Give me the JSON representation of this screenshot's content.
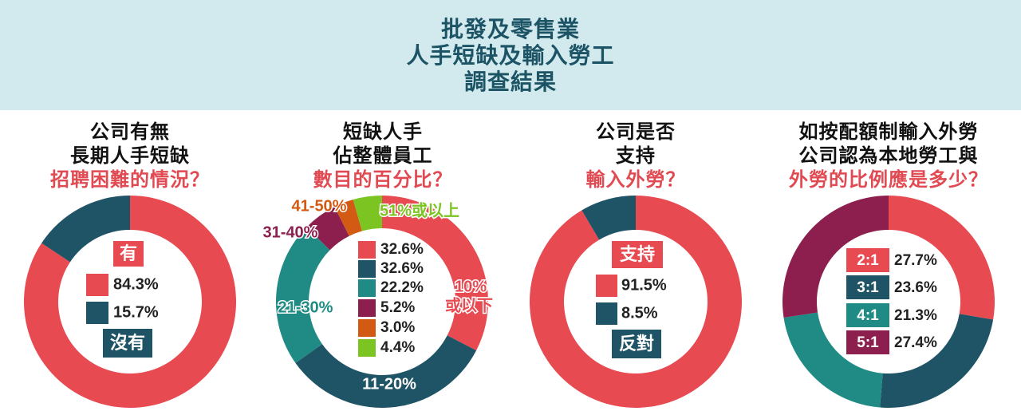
{
  "header": {
    "lines": [
      "批發及零售業",
      "人手短缺及輸入勞工",
      "調查結果"
    ]
  },
  "colors": {
    "red": "#e84a52",
    "navy": "#1f5466",
    "teal": "#1f8b84",
    "plum": "#8d1f4e",
    "orange": "#d35a12",
    "green": "#7cc421",
    "header_bg": "#d2eaee",
    "accent_text": "#e14a52"
  },
  "panels": [
    {
      "title": [
        "公司有無",
        "長期人手短缺",
        "招聘困難的情況？"
      ]
    },
    {
      "title": [
        "短缺人手",
        "佔整體員工",
        "數目的百分比？"
      ]
    },
    {
      "title": [
        "公司是否",
        "支持",
        "輸入外勞？"
      ]
    },
    {
      "title": [
        "如按配額制輸入外勞",
        "公司認為本地勞工與",
        "外勞的比例應是多少？"
      ]
    }
  ],
  "chart_data": [
    {
      "type": "pie",
      "title": "公司有無長期人手短缺招聘困難的情況？",
      "categories": [
        "有",
        "沒有"
      ],
      "values": [
        84.3,
        15.7
      ],
      "value_labels": [
        "84.3%",
        "15.7%"
      ],
      "colors": [
        "#e84a52",
        "#1f5466"
      ],
      "legend_headers": {
        "top": "有",
        "bottom": "沒有"
      }
    },
    {
      "type": "pie",
      "title": "短缺人手佔整體員工數目的百分比？",
      "categories": [
        "10%或以下",
        "11-20%",
        "21-30%",
        "31-40%",
        "41-50%",
        "51%或以上"
      ],
      "values": [
        32.6,
        32.6,
        22.2,
        5.2,
        3.0,
        4.4
      ],
      "value_labels": [
        "32.6%",
        "32.6%",
        "22.2%",
        "5.2%",
        "3.0%",
        "4.4%"
      ],
      "slice_labels": [
        "10%\n或以下",
        "11-20%",
        "21-30%",
        "31-40%",
        "41-50%",
        "51%或以上"
      ],
      "colors": [
        "#e84a52",
        "#1f5466",
        "#1f8b84",
        "#8d1f4e",
        "#d35a12",
        "#7cc421"
      ]
    },
    {
      "type": "pie",
      "title": "公司是否支持輸入外勞？",
      "categories": [
        "支持",
        "反對"
      ],
      "values": [
        91.5,
        8.5
      ],
      "value_labels": [
        "91.5%",
        "8.5%"
      ],
      "colors": [
        "#e84a52",
        "#1f5466"
      ],
      "legend_headers": {
        "top": "支持",
        "bottom": "反對"
      }
    },
    {
      "type": "pie",
      "title": "如按配額制輸入外勞公司認為本地勞工與外勞的比例應是多少？",
      "categories": [
        "2:1",
        "3:1",
        "4:1",
        "5:1"
      ],
      "values": [
        27.7,
        23.6,
        21.3,
        27.4
      ],
      "value_labels": [
        "27.7%",
        "23.6%",
        "21.3%",
        "27.4%"
      ],
      "colors": [
        "#e84a52",
        "#1f5466",
        "#1f8b84",
        "#8d1f4e"
      ]
    }
  ]
}
